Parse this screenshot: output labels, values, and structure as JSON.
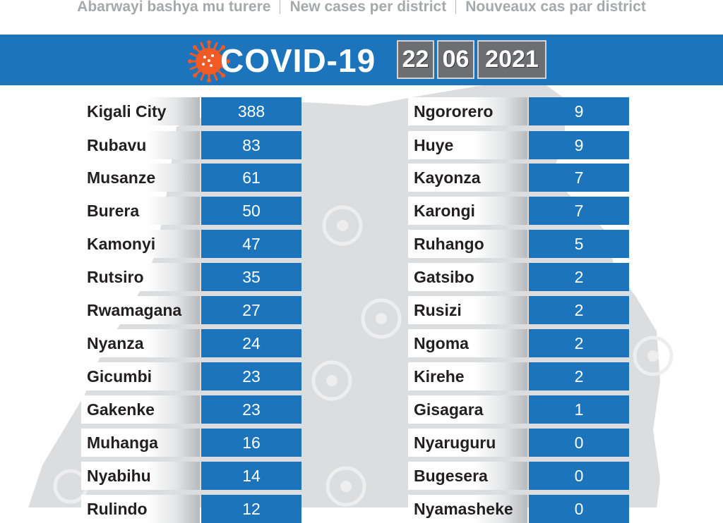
{
  "header": {
    "subtitle_rw": "Abarwayi bashya mu turere",
    "subtitle_en": "New cases per district",
    "subtitle_fr": "Nouveaux cas par district"
  },
  "banner": {
    "title": "COVID-19",
    "date_day": "22",
    "date_month": "06",
    "date_year": "2021"
  },
  "colors": {
    "banner_blue": "#1c75bc",
    "virus_orange": "#f15a24",
    "date_box_gray": "#6d6e71",
    "map_gray": "#d8d9da"
  },
  "left_districts": [
    {
      "name": "Kigali City",
      "cases": "388"
    },
    {
      "name": "Rubavu",
      "cases": "83"
    },
    {
      "name": "Musanze",
      "cases": "61"
    },
    {
      "name": "Burera",
      "cases": "50"
    },
    {
      "name": "Kamonyi",
      "cases": "47"
    },
    {
      "name": "Rutsiro",
      "cases": "35"
    },
    {
      "name": "Rwamagana",
      "cases": "27"
    },
    {
      "name": "Nyanza",
      "cases": "24"
    },
    {
      "name": "Gicumbi",
      "cases": "23"
    },
    {
      "name": "Gakenke",
      "cases": "23"
    },
    {
      "name": "Muhanga",
      "cases": "16"
    },
    {
      "name": "Nyabihu",
      "cases": "14"
    },
    {
      "name": "Rulindo",
      "cases": "12"
    }
  ],
  "right_districts": [
    {
      "name": "Ngororero",
      "cases": "9"
    },
    {
      "name": "Huye",
      "cases": "9"
    },
    {
      "name": "Kayonza",
      "cases": "7"
    },
    {
      "name": "Karongi",
      "cases": "7"
    },
    {
      "name": "Ruhango",
      "cases": "5"
    },
    {
      "name": "Gatsibo",
      "cases": "2"
    },
    {
      "name": "Rusizi",
      "cases": "2"
    },
    {
      "name": "Ngoma",
      "cases": "2"
    },
    {
      "name": "Kirehe",
      "cases": "2"
    },
    {
      "name": "Gisagara",
      "cases": "1"
    },
    {
      "name": "Nyaruguru",
      "cases": "0"
    },
    {
      "name": "Bugesera",
      "cases": "0"
    },
    {
      "name": "Nyamasheke",
      "cases": "0"
    }
  ]
}
